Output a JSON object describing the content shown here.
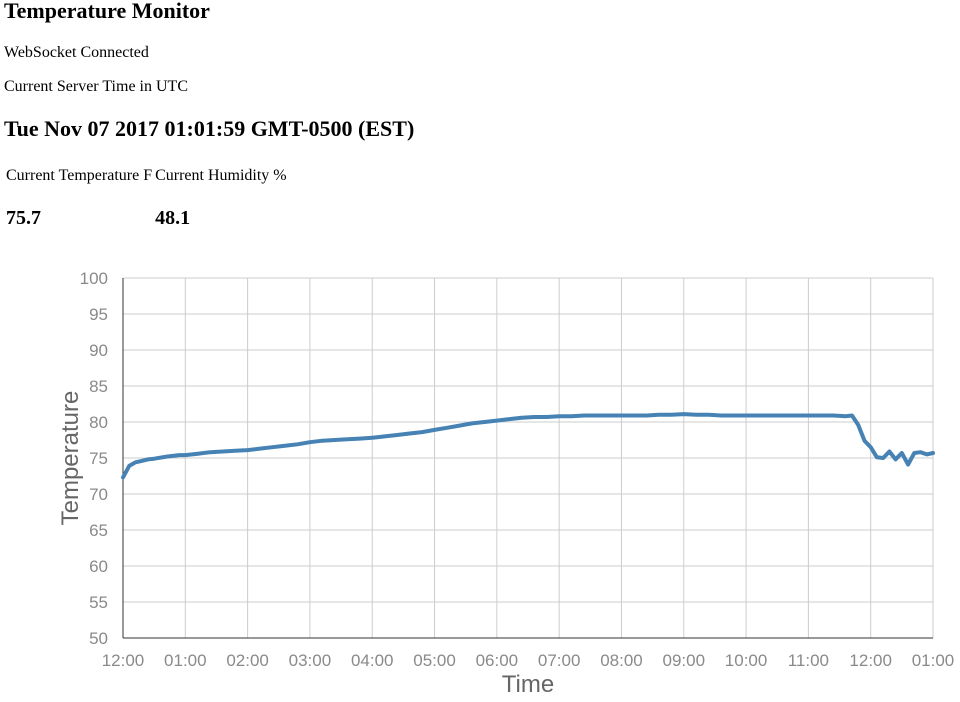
{
  "page": {
    "title": "Temperature Monitor",
    "status": "WebSocket Connected",
    "time_caption": "Current Server Time in UTC",
    "server_time": "Tue Nov 07 2017 01:01:59 GMT-0500 (EST)"
  },
  "readings": {
    "temperature_label": "Current Temperature F",
    "humidity_label": "Current Humidity %",
    "temperature_value": "75.7",
    "humidity_value": "48.1"
  },
  "chart_data": {
    "type": "line",
    "title": "",
    "xlabel": "Time",
    "ylabel": "Temperature",
    "ylim": [
      50,
      100
    ],
    "y_ticks": [
      100,
      95,
      90,
      85,
      80,
      75,
      70,
      65,
      60,
      55,
      50
    ],
    "x_ticks": [
      "12:00",
      "01:00",
      "02:00",
      "03:00",
      "04:00",
      "05:00",
      "06:00",
      "07:00",
      "08:00",
      "09:00",
      "10:00",
      "11:00",
      "12:00",
      "01:00"
    ],
    "xlim_hours": [
      0,
      13
    ],
    "grid": true,
    "legend": "none",
    "line_color": "#4682b4",
    "series": [
      {
        "x": [
          0,
          0.1,
          0.2,
          0.3,
          0.4,
          0.5,
          0.7,
          0.9,
          1.0,
          1.2,
          1.4,
          1.6,
          1.8,
          2.0,
          2.2,
          2.4,
          2.6,
          2.8,
          3.0,
          3.2,
          3.4,
          3.6,
          3.8,
          4.0,
          4.2,
          4.4,
          4.6,
          4.8,
          5.0,
          5.2,
          5.4,
          5.6,
          5.8,
          6.0,
          6.2,
          6.4,
          6.6,
          6.8,
          7.0,
          7.2,
          7.4,
          7.6,
          7.8,
          8.0,
          8.2,
          8.4,
          8.6,
          8.8,
          9.0,
          9.2,
          9.4,
          9.6,
          9.8,
          10.0,
          10.2,
          10.4,
          10.6,
          10.8,
          11.0,
          11.2,
          11.4,
          11.6,
          11.7,
          11.8,
          11.9,
          12.0,
          12.1,
          12.2,
          12.3,
          12.4,
          12.5,
          12.6,
          12.7,
          12.8,
          12.9,
          13.0
        ],
        "values": [
          72.3,
          73.9,
          74.4,
          74.6,
          74.8,
          74.9,
          75.2,
          75.4,
          75.4,
          75.6,
          75.8,
          75.9,
          76.0,
          76.1,
          76.3,
          76.5,
          76.7,
          76.9,
          77.2,
          77.4,
          77.5,
          77.6,
          77.7,
          77.8,
          78.0,
          78.2,
          78.4,
          78.6,
          78.9,
          79.2,
          79.5,
          79.8,
          80.0,
          80.2,
          80.4,
          80.6,
          80.7,
          80.7,
          80.8,
          80.8,
          80.9,
          80.9,
          80.9,
          80.9,
          80.9,
          80.9,
          81.0,
          81.0,
          81.1,
          81.0,
          81.0,
          80.9,
          80.9,
          80.9,
          80.9,
          80.9,
          80.9,
          80.9,
          80.9,
          80.9,
          80.9,
          80.8,
          80.9,
          79.6,
          77.4,
          76.5,
          75.1,
          75.0,
          75.9,
          74.8,
          75.7,
          74.1,
          75.7,
          75.8,
          75.5,
          75.7
        ]
      }
    ]
  }
}
